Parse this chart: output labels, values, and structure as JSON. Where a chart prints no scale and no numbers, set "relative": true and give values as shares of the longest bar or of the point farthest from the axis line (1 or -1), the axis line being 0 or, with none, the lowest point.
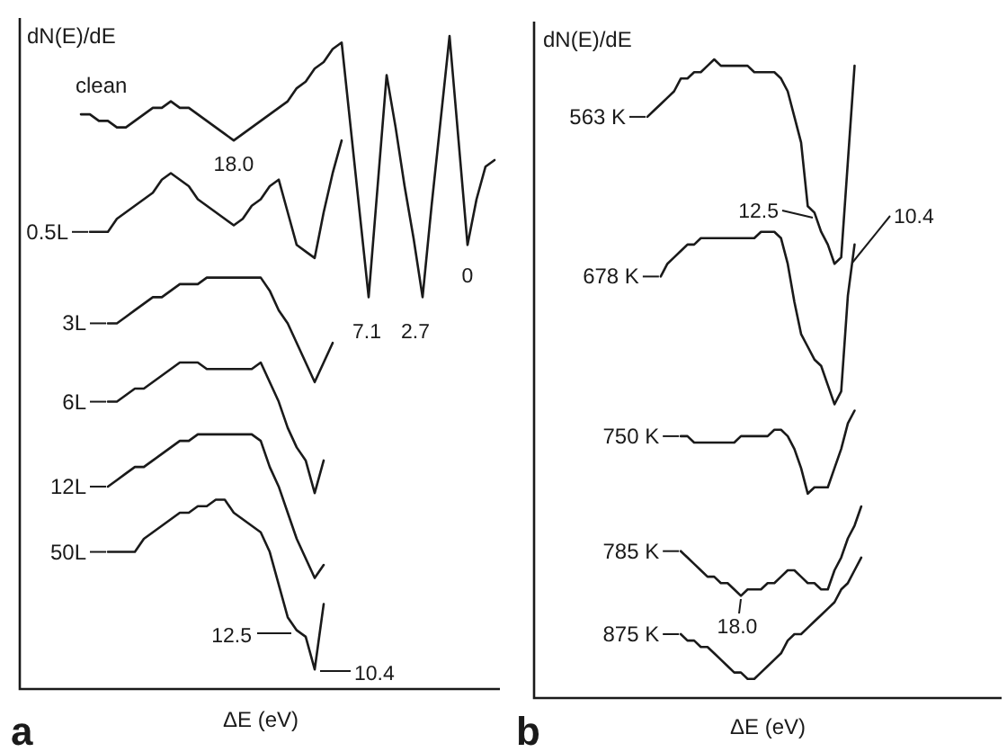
{
  "chart_data": [
    {
      "type": "line",
      "title": "a",
      "xlabel": "ΔE (eV)",
      "ylabel": "dN(E)/dE",
      "relative": true,
      "legend": "left",
      "categories": [
        null,
        null,
        null,
        null,
        null,
        null,
        null,
        null,
        null,
        null,
        null,
        null,
        null,
        null,
        null,
        null,
        null,
        null,
        null,
        null,
        null,
        null,
        null,
        null,
        null,
        null,
        null,
        null,
        null,
        null,
        null,
        null,
        null,
        null,
        null,
        null,
        null,
        null,
        null,
        null,
        null,
        null,
        null,
        null,
        null,
        null,
        null
      ],
      "series": [
        {
          "name": "clean",
          "color": "#1a1a1a",
          "values": [
            0.88,
            0.88,
            0.87,
            0.87,
            0.86,
            0.86,
            0.87,
            0.88,
            0.89,
            0.89,
            0.9,
            0.89,
            0.89,
            0.88,
            0.87,
            0.86,
            0.85,
            0.84,
            0.85,
            0.86,
            0.87,
            0.88,
            0.89,
            0.9,
            0.92,
            0.93,
            0.95,
            0.96,
            0.98,
            0.99,
            0.86,
            0.73,
            0.6,
            0.77,
            0.94,
            0.86,
            0.77,
            0.69,
            0.6,
            0.74,
            0.87,
            1.0,
            0.84,
            0.68,
            0.75,
            0.8,
            0.81
          ]
        },
        {
          "name": "0.5L",
          "color": "#1a1a1a",
          "values": [
            null,
            0.7,
            0.7,
            0.7,
            0.72,
            0.73,
            0.74,
            0.75,
            0.76,
            0.78,
            0.79,
            0.78,
            0.77,
            0.75,
            0.74,
            0.73,
            0.72,
            0.71,
            0.72,
            0.74,
            0.75,
            0.77,
            0.78,
            0.73,
            0.68,
            0.67,
            0.66,
            0.73,
            0.79,
            0.84,
            null,
            null,
            null,
            null,
            null,
            null,
            null,
            null,
            null,
            null,
            null,
            null,
            null,
            null,
            null,
            null,
            null
          ]
        },
        {
          "name": "3L",
          "color": "#1a1a1a",
          "values": [
            null,
            null,
            null,
            0.56,
            0.56,
            0.57,
            0.58,
            0.59,
            0.6,
            0.6,
            0.61,
            0.62,
            0.62,
            0.62,
            0.63,
            0.63,
            0.63,
            0.63,
            0.63,
            0.63,
            0.63,
            0.61,
            0.58,
            0.56,
            0.53,
            0.5,
            0.47,
            0.5,
            0.53,
            null,
            null,
            null,
            null,
            null,
            null,
            null,
            null,
            null,
            null,
            null,
            null,
            null,
            null,
            null,
            null,
            null,
            null
          ]
        },
        {
          "name": "6L",
          "color": "#1a1a1a",
          "values": [
            null,
            null,
            null,
            0.44,
            0.44,
            0.45,
            0.46,
            0.46,
            0.47,
            0.48,
            0.49,
            0.5,
            0.5,
            0.5,
            0.49,
            0.49,
            0.49,
            0.49,
            0.49,
            0.49,
            0.5,
            0.47,
            0.44,
            0.4,
            0.37,
            0.35,
            0.3,
            0.35,
            null,
            null,
            null,
            null,
            null,
            null,
            null,
            null,
            null,
            null,
            null,
            null,
            null,
            null,
            null,
            null,
            null,
            null,
            null
          ]
        },
        {
          "name": "12L",
          "color": "#1a1a1a",
          "values": [
            null,
            null,
            null,
            0.31,
            0.32,
            0.33,
            0.34,
            0.34,
            0.35,
            0.36,
            0.37,
            0.38,
            0.38,
            0.39,
            0.39,
            0.39,
            0.39,
            0.39,
            0.39,
            0.39,
            0.38,
            0.34,
            0.31,
            0.27,
            0.23,
            0.2,
            0.17,
            0.19,
            null,
            null,
            null,
            null,
            null,
            null,
            null,
            null,
            null,
            null,
            null,
            null,
            null,
            null,
            null,
            null,
            null,
            null,
            null
          ]
        },
        {
          "name": "50L",
          "color": "#1a1a1a",
          "values": [
            null,
            null,
            null,
            0.21,
            0.21,
            0.21,
            0.21,
            0.23,
            0.24,
            0.25,
            0.26,
            0.27,
            0.27,
            0.28,
            0.28,
            0.29,
            0.29,
            0.27,
            0.26,
            0.25,
            0.24,
            0.21,
            0.16,
            0.11,
            0.09,
            0.08,
            0.03,
            0.13,
            null,
            null,
            null,
            null,
            null,
            null,
            null,
            null,
            null,
            null,
            null,
            null,
            null,
            null,
            null,
            null,
            null,
            null,
            null
          ]
        }
      ],
      "annotations": [
        "18.0",
        "7.1",
        "2.7",
        "0",
        "12.5",
        "10.4"
      ]
    },
    {
      "type": "line",
      "title": "b",
      "xlabel": "ΔE (eV)",
      "ylabel": "dN(E)/dE",
      "relative": true,
      "legend": "left",
      "categories": [
        null,
        null,
        null,
        null,
        null,
        null,
        null,
        null,
        null,
        null,
        null,
        null,
        null,
        null,
        null,
        null,
        null,
        null,
        null,
        null,
        null,
        null,
        null,
        null,
        null,
        null,
        null,
        null,
        null,
        null,
        null,
        null,
        null,
        null,
        null,
        null,
        null,
        null,
        null,
        null,
        null,
        null,
        null,
        null,
        null,
        null,
        null,
        null,
        null,
        null,
        null,
        null,
        null,
        null
      ],
      "series": [
        {
          "name": "563 K",
          "color": "#1a1a1a",
          "values": [
            0.91,
            0.92,
            0.93,
            0.94,
            0.95,
            0.97,
            0.97,
            0.98,
            0.98,
            0.99,
            1.0,
            0.99,
            0.99,
            0.99,
            0.99,
            0.99,
            0.98,
            0.98,
            0.98,
            0.98,
            0.97,
            0.95,
            0.91,
            0.87,
            0.77,
            0.76,
            0.73,
            0.71,
            0.68,
            0.69,
            0.84,
            0.99,
            null,
            null,
            null,
            null,
            null,
            null,
            null,
            null,
            null,
            null,
            null,
            null,
            null,
            null,
            null,
            null,
            null,
            null,
            null,
            null,
            null,
            null
          ]
        },
        {
          "name": "678 K",
          "color": "#1a1a1a",
          "values": [
            null,
            null,
            0.66,
            0.68,
            0.69,
            0.7,
            0.71,
            0.71,
            0.72,
            0.72,
            0.72,
            0.72,
            0.72,
            0.72,
            0.72,
            0.72,
            0.72,
            0.73,
            0.73,
            0.73,
            0.72,
            0.68,
            0.62,
            0.57,
            0.55,
            0.53,
            0.52,
            0.49,
            0.46,
            0.48,
            0.63,
            0.71,
            null,
            null,
            null,
            null,
            null,
            null,
            null,
            null,
            null,
            null,
            null,
            null,
            null,
            null,
            null,
            null,
            null,
            null,
            null,
            null,
            null,
            null
          ]
        },
        {
          "name": "750 K",
          "color": "#1a1a1a",
          "values": [
            null,
            null,
            null,
            null,
            null,
            0.41,
            0.41,
            0.4,
            0.4,
            0.4,
            0.4,
            0.4,
            0.4,
            0.4,
            0.41,
            0.41,
            0.41,
            0.41,
            0.41,
            0.42,
            0.42,
            0.41,
            0.39,
            0.36,
            0.32,
            0.33,
            0.33,
            0.33,
            0.36,
            0.39,
            0.43,
            0.45,
            null,
            null,
            null,
            null,
            null,
            null,
            null,
            null,
            null,
            null,
            null,
            null,
            null,
            null,
            null,
            null,
            null,
            null,
            null,
            null,
            null,
            null
          ]
        },
        {
          "name": "785 K",
          "color": "#1a1a1a",
          "values": [
            null,
            null,
            null,
            null,
            null,
            0.23,
            0.22,
            0.21,
            0.2,
            0.19,
            0.19,
            0.18,
            0.18,
            0.17,
            0.16,
            0.17,
            0.17,
            0.17,
            0.18,
            0.18,
            0.19,
            0.2,
            0.2,
            0.19,
            0.18,
            0.18,
            0.17,
            0.17,
            0.2,
            0.22,
            0.25,
            0.27,
            0.3,
            null,
            null,
            null,
            null,
            null,
            null,
            null,
            null,
            null,
            null,
            null,
            null,
            null,
            null,
            null,
            null,
            null,
            null,
            null,
            null,
            null
          ]
        },
        {
          "name": "875 K",
          "color": "#1a1a1a",
          "values": [
            null,
            null,
            null,
            null,
            null,
            0.1,
            0.09,
            0.09,
            0.08,
            0.08,
            0.07,
            0.06,
            0.05,
            0.04,
            0.04,
            0.03,
            0.03,
            0.04,
            0.05,
            0.06,
            0.07,
            0.09,
            0.1,
            0.1,
            0.11,
            0.12,
            0.13,
            0.14,
            0.15,
            0.17,
            0.18,
            0.2,
            0.22,
            null,
            null,
            null,
            null,
            null,
            null,
            null,
            null,
            null,
            null,
            null,
            null,
            null,
            null,
            null,
            null,
            null,
            null,
            null,
            null,
            null
          ]
        }
      ],
      "annotations": [
        "12.5",
        "10.4",
        "18.0"
      ]
    }
  ]
}
